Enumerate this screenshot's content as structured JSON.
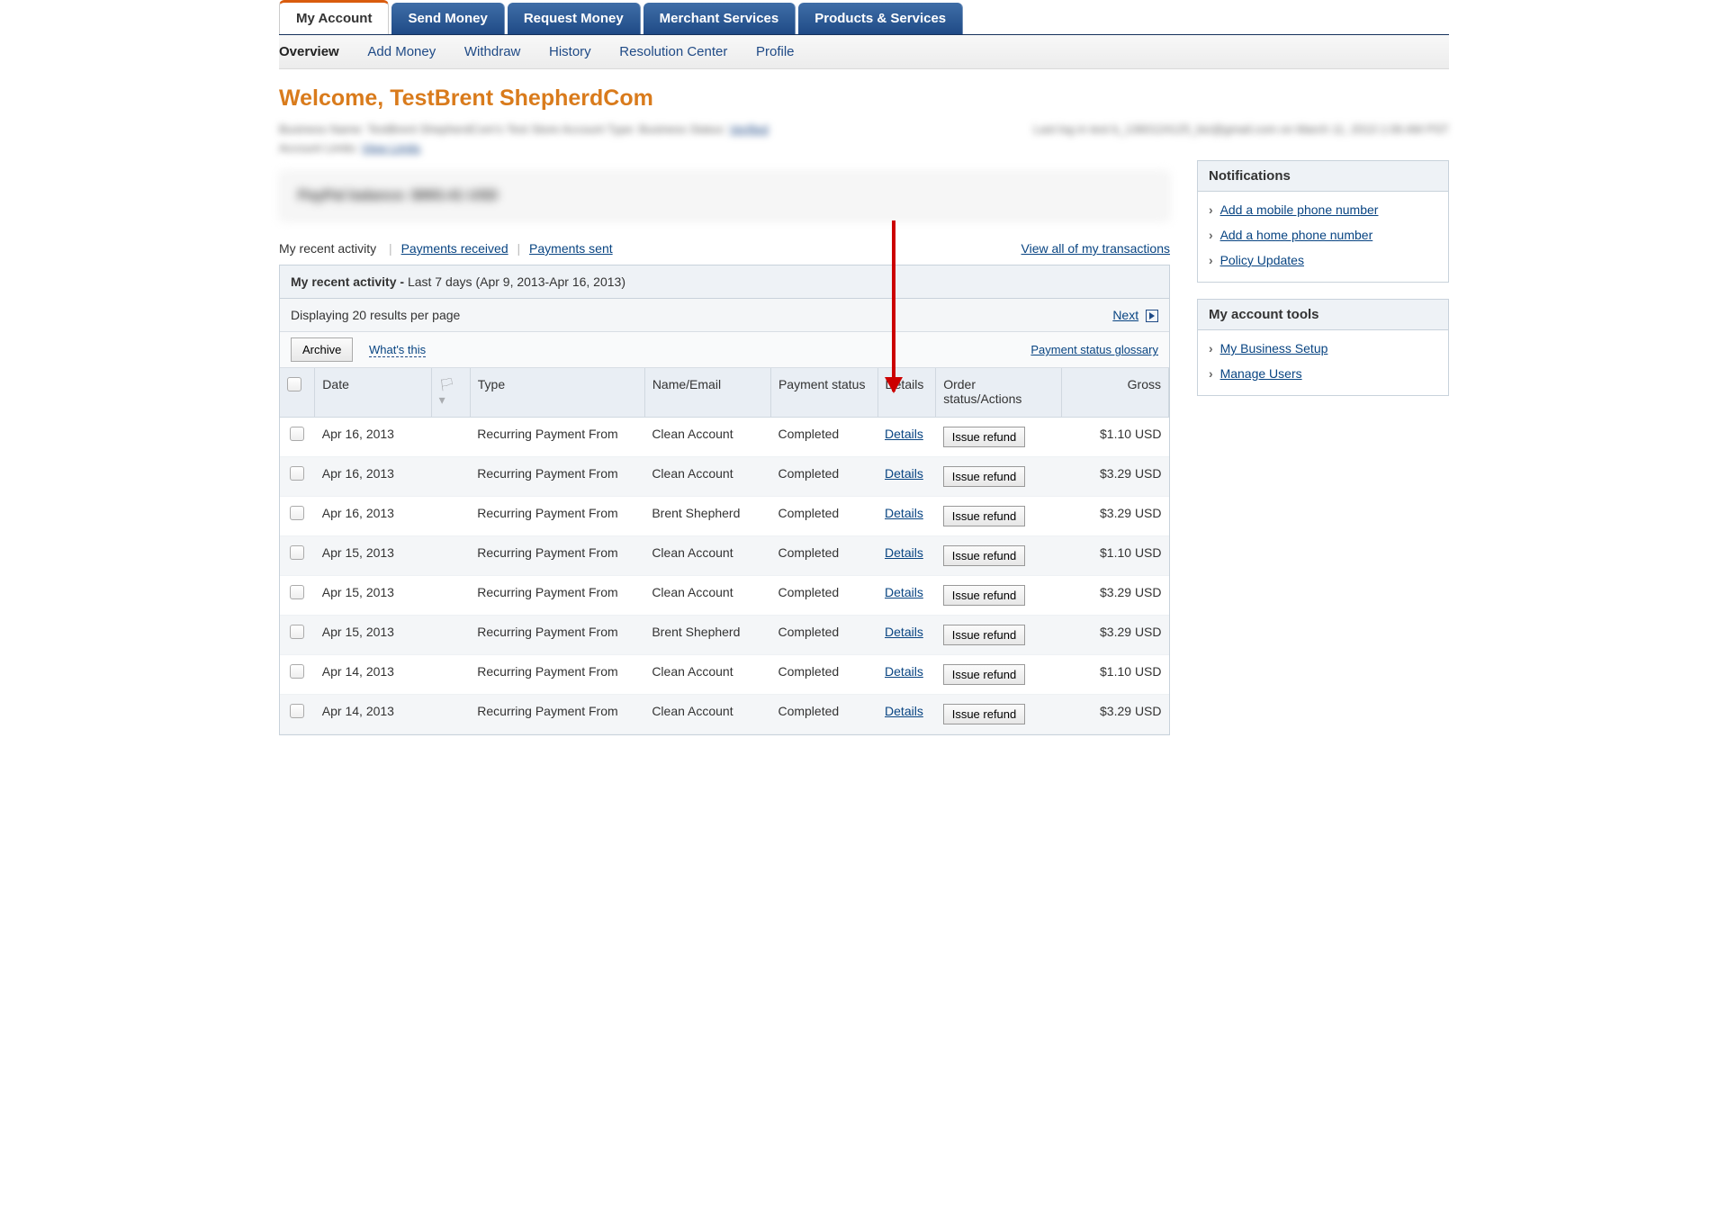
{
  "nav": {
    "tabs": [
      "My Account",
      "Send Money",
      "Request Money",
      "Merchant Services",
      "Products & Services"
    ],
    "active_tab": "My Account",
    "subtabs": [
      "Overview",
      "Add Money",
      "Withdraw",
      "History",
      "Resolution Center",
      "Profile"
    ],
    "active_subtab": "Overview"
  },
  "welcome": "Welcome, TestBrent ShepherdCom",
  "account_info_blur": {
    "left1": "Business Name: TestBrent ShepherdCom's Test Store    Account Type: Business    Status:",
    "left1_link": "Verified",
    "left2": "Account Limits:",
    "left2_link": "View Limits",
    "right": "Last log in test b_1360124125_biz@gmail.com on March 11, 2013 1:06 AM PST"
  },
  "balance_blur": "PayPal balance:    $993.41 USD",
  "activity": {
    "tabs": {
      "current": "My recent activity",
      "received": "Payments received",
      "sent": "Payments sent"
    },
    "view_all_link": "View all of my transactions",
    "header_label": "My recent activity -",
    "header_range": "Last 7 days (Apr 9, 2013-Apr 16, 2013)",
    "displaying": "Displaying 20 results per page",
    "next_label": "Next",
    "archive_btn": "Archive",
    "whats_this": "What's this",
    "glossary_link": "Payment status glossary",
    "columns": {
      "date": "Date",
      "type": "Type",
      "name": "Name/Email",
      "pstatus": "Payment status",
      "details": "Details",
      "order": "Order status/Actions",
      "gross": "Gross"
    },
    "details_label": "Details",
    "refund_label": "Issue refund",
    "rows": [
      {
        "date": "Apr 16, 2013",
        "type": "Recurring Payment From",
        "name": "Clean Account",
        "pstatus": "Completed",
        "gross": "$1.10 USD"
      },
      {
        "date": "Apr 16, 2013",
        "type": "Recurring Payment From",
        "name": "Clean Account",
        "pstatus": "Completed",
        "gross": "$3.29 USD"
      },
      {
        "date": "Apr 16, 2013",
        "type": "Recurring Payment From",
        "name": "Brent Shepherd",
        "pstatus": "Completed",
        "gross": "$3.29 USD"
      },
      {
        "date": "Apr 15, 2013",
        "type": "Recurring Payment From",
        "name": "Clean Account",
        "pstatus": "Completed",
        "gross": "$1.10 USD"
      },
      {
        "date": "Apr 15, 2013",
        "type": "Recurring Payment From",
        "name": "Clean Account",
        "pstatus": "Completed",
        "gross": "$3.29 USD"
      },
      {
        "date": "Apr 15, 2013",
        "type": "Recurring Payment From",
        "name": "Brent Shepherd",
        "pstatus": "Completed",
        "gross": "$3.29 USD"
      },
      {
        "date": "Apr 14, 2013",
        "type": "Recurring Payment From",
        "name": "Clean Account",
        "pstatus": "Completed",
        "gross": "$1.10 USD"
      },
      {
        "date": "Apr 14, 2013",
        "type": "Recurring Payment From",
        "name": "Clean Account",
        "pstatus": "Completed",
        "gross": "$3.29 USD"
      }
    ]
  },
  "side": {
    "notifications": {
      "title": "Notifications",
      "items": [
        "Add a mobile phone number",
        "Add a home phone number",
        "Policy Updates"
      ]
    },
    "tools": {
      "title": "My account tools",
      "items": [
        "My Business Setup",
        "Manage Users"
      ]
    }
  }
}
